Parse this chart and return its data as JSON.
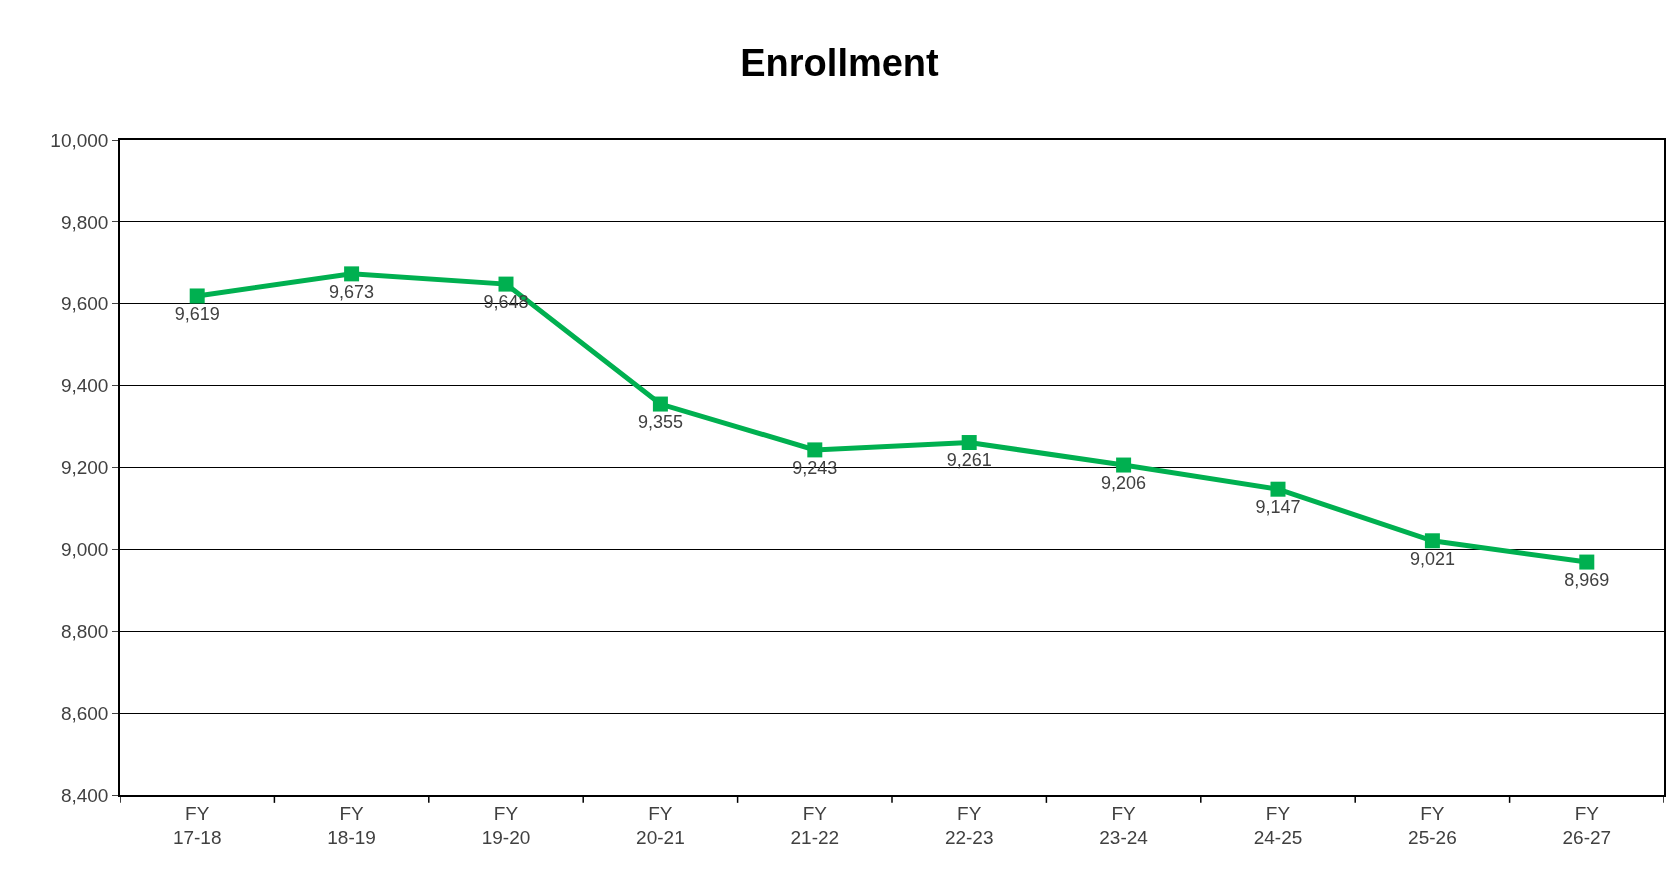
{
  "chart_data": {
    "type": "line",
    "title": "Enrollment",
    "categories": [
      "FY\n17-18",
      "FY\n18-19",
      "FY\n19-20",
      "FY\n20-21",
      "FY\n21-22",
      "FY\n22-23",
      "FY\n23-24",
      "FY\n24-25",
      "FY\n25-26",
      "FY\n26-27"
    ],
    "series": [
      {
        "color": "#00b050",
        "values": [
          9619,
          9673,
          9648,
          9355,
          9243,
          9261,
          9206,
          9147,
          9021,
          8969
        ],
        "value_labels": [
          "9,619",
          "9,673",
          "9,648",
          "9,355",
          "9,243",
          "9,261",
          "9,206",
          "9,147",
          "9,021",
          "8,969"
        ]
      }
    ],
    "ylim": [
      8400,
      10000
    ],
    "yticks": [
      {
        "value": 8400,
        "label": "8,400"
      },
      {
        "value": 8600,
        "label": "8,600"
      },
      {
        "value": 8800,
        "label": "8,800"
      },
      {
        "value": 9000,
        "label": "9,000"
      },
      {
        "value": 9200,
        "label": "9,200"
      },
      {
        "value": 9400,
        "label": "9,400"
      },
      {
        "value": 9600,
        "label": "9,600"
      },
      {
        "value": 9800,
        "label": "9,800"
      },
      {
        "value": 10000,
        "label": "10,000"
      }
    ],
    "grid": "y",
    "legend": false,
    "marker": "square",
    "line_style": "solid"
  }
}
